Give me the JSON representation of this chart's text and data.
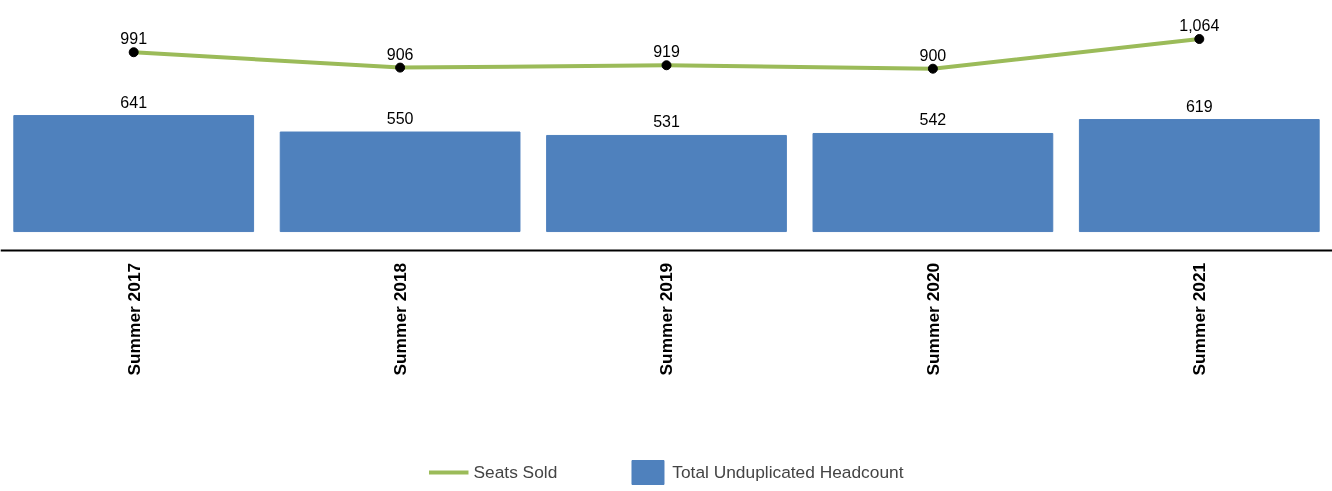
{
  "chart_data": {
    "type": "bar",
    "categories": [
      "Summer 2017",
      "Summer 2018",
      "Summer 2019",
      "Summer 2020",
      "Summer 2021"
    ],
    "series": [
      {
        "name": "Seats Sold",
        "type": "line",
        "color": "#9bbb59",
        "values": [
          991,
          906,
          919,
          900,
          1064
        ],
        "value_labels": [
          "991",
          "906",
          "919",
          "900",
          "1,064"
        ]
      },
      {
        "name": "Total Unduplicated Headcount",
        "color": "#4f81bd",
        "values": [
          641,
          550,
          531,
          542,
          619
        ],
        "value_labels": [
          "641",
          "550",
          "531",
          "542",
          "619"
        ]
      }
    ],
    "legend": "bottom",
    "marker": "circle",
    "grid": false
  }
}
